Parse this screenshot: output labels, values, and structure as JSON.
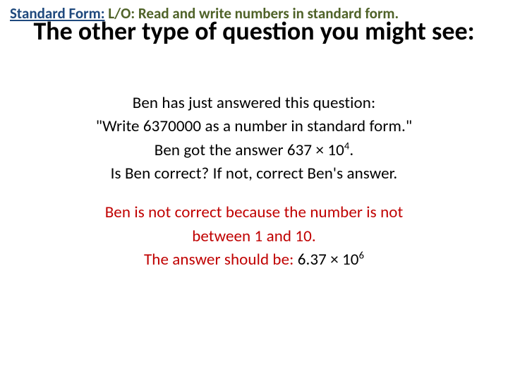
{
  "header": {
    "standard_form": "Standard Form:",
    "objective_label": "L/O:",
    "objective_text": "Read and write numbers in standard form."
  },
  "title": "The other type of question you might see:",
  "question": {
    "l1": "Ben has just answered this question:",
    "l2": "\"Write 6370000 as a number in standard form.\"",
    "l3_a": "Ben got the answer ",
    "l3_b": "637 × 10",
    "l3_exp": "4",
    "l3_c": ".",
    "l4": "Is Ben correct? If not, correct Ben's answer."
  },
  "answer": {
    "l1": "Ben is not correct because the number is not",
    "l2": "between 1 and 10.",
    "l3_a": "The answer should be: ",
    "l3_b": "6.37 × 10",
    "l3_exp": "6"
  }
}
